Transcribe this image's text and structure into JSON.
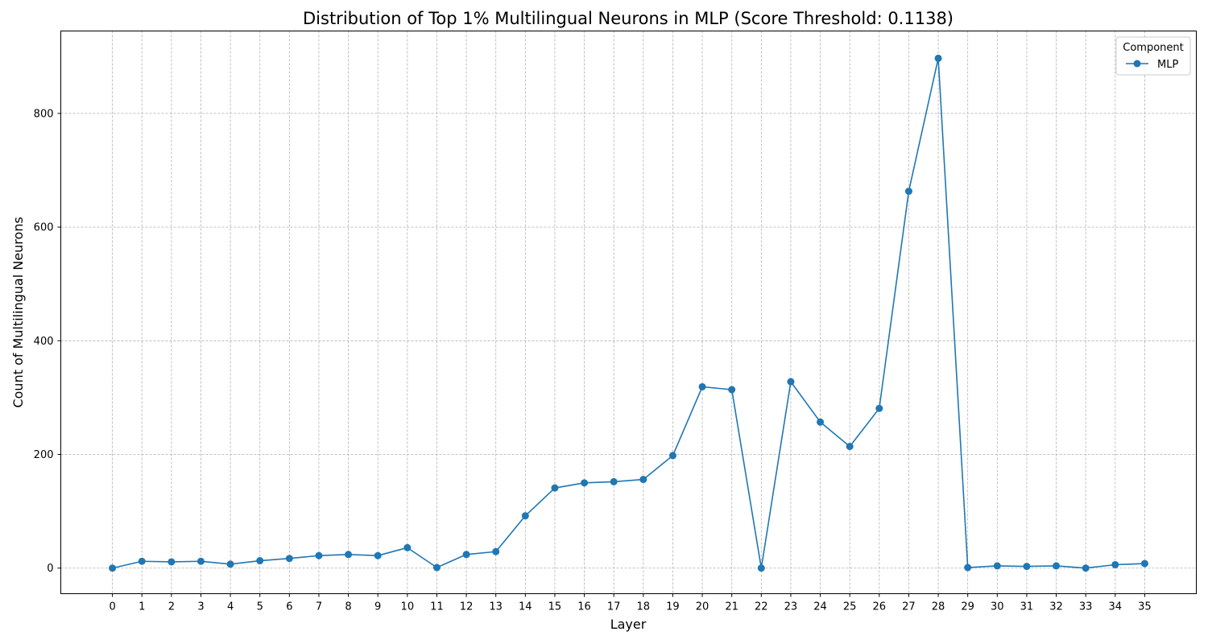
{
  "chart_data": {
    "type": "line",
    "title": "Distribution of Top 1% Multilingual Neurons in MLP (Score Threshold: 0.1138)",
    "xlabel": "Layer",
    "ylabel": "Count of Multilingual Neurons",
    "xlim": [
      -1.75,
      36.75
    ],
    "ylim": [
      -45,
      945
    ],
    "yticks": [
      0,
      200,
      400,
      600,
      800
    ],
    "grid": true,
    "legend": {
      "title": "Component",
      "placement": "top-right"
    },
    "x": [
      0,
      1,
      2,
      3,
      4,
      5,
      6,
      7,
      8,
      9,
      10,
      11,
      12,
      13,
      14,
      15,
      16,
      17,
      18,
      19,
      20,
      21,
      22,
      23,
      24,
      25,
      26,
      27,
      28,
      29,
      30,
      31,
      32,
      33,
      34,
      35
    ],
    "series": [
      {
        "name": "MLP",
        "color": "#1f77b4",
        "marker": "circle",
        "values": [
          0,
          12,
          11,
          12,
          7,
          13,
          17,
          22,
          24,
          22,
          36,
          1,
          24,
          29,
          92,
          141,
          150,
          152,
          156,
          198,
          319,
          314,
          0,
          328,
          257,
          214,
          281,
          663,
          897,
          1,
          4,
          3,
          4,
          0,
          6,
          8
        ]
      }
    ]
  }
}
